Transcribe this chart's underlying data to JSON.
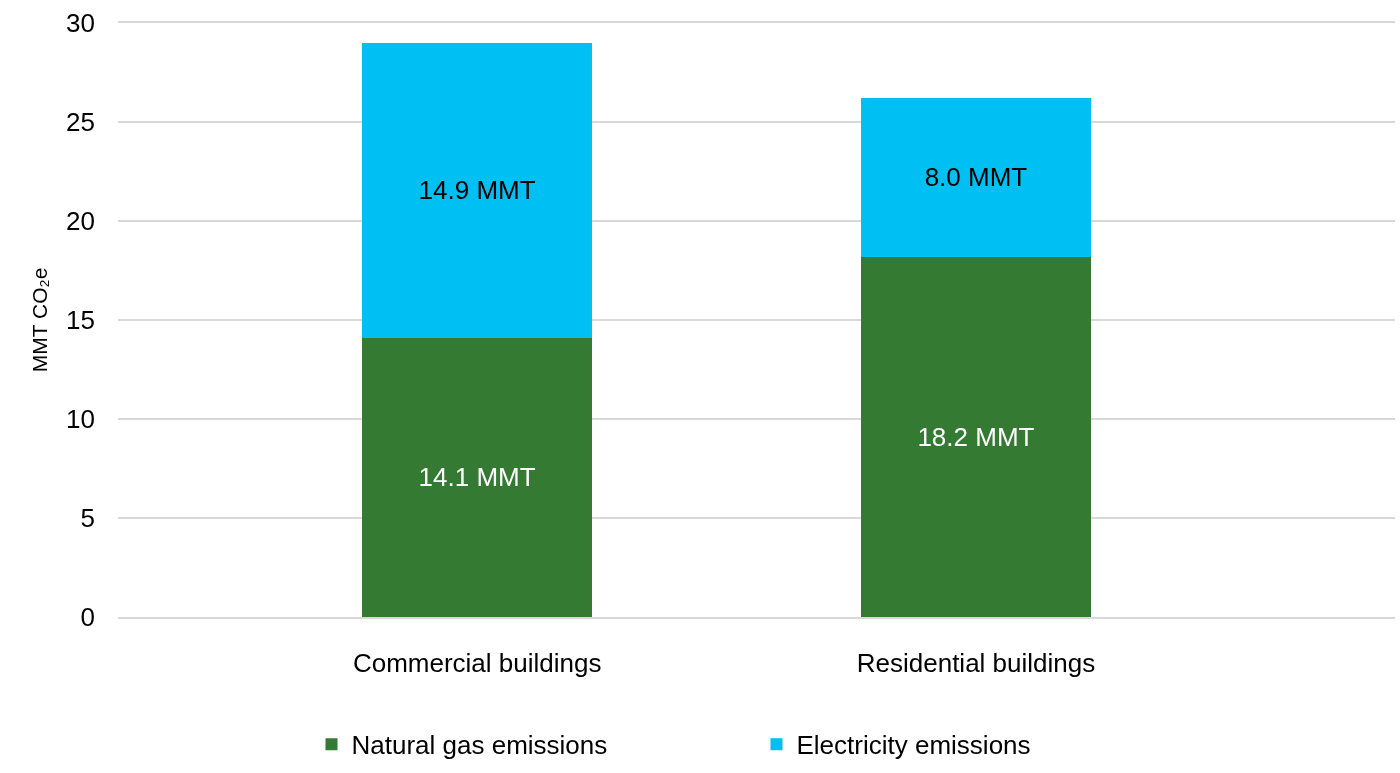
{
  "chart_data": {
    "type": "bar",
    "stacked": true,
    "ylabel": "MMT CO₂e",
    "categories": [
      "Commercial buildings",
      "Residential buildings"
    ],
    "series": [
      {
        "name": "Natural gas emissions",
        "color": "#357a32",
        "values": [
          14.1,
          18.2
        ],
        "value_labels": [
          "14.1 MMT",
          "18.2 MMT"
        ]
      },
      {
        "name": "Electricity emissions",
        "color": "#00c0f3",
        "values": [
          14.9,
          8.0
        ],
        "value_labels": [
          "14.9 MMT",
          "8.0 MMT"
        ]
      }
    ],
    "ylim": [
      0,
      30
    ],
    "yticks": [
      0,
      5,
      10,
      15,
      20,
      25,
      30
    ],
    "grid": "y",
    "legend": "bottom"
  }
}
